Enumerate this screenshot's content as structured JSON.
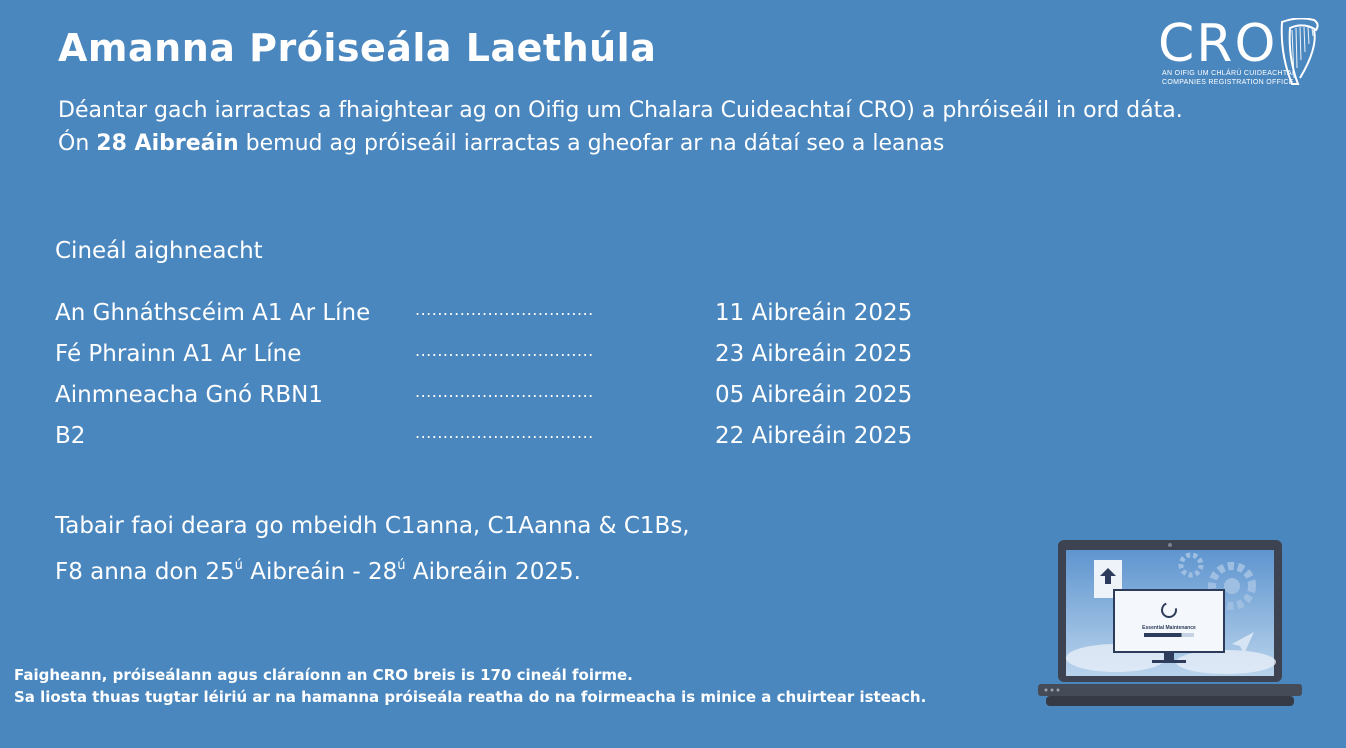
{
  "title": "Amanna Próiseála Laethúla",
  "intro": {
    "part1": "Déantar gach iarractas a fhaightear ag on Oifig um Chalara Cuideachtaí CRO) a phróiseáil in ord dáta. Ón ",
    "bold": "28 Aibreáin",
    "part2": " bemud ag próiseáil iarractas a gheofar ar na dátaí seo a leanas"
  },
  "section_label": "Cineál aighneacht",
  "rows": [
    {
      "name": "An Ghnáthscéim A1 Ar Líne",
      "dots": "................................",
      "date": "11 Aibreáin 2025"
    },
    {
      "name": "Fé Phrainn A1 Ar Líne",
      "dots": "................................",
      "date": "23 Aibreáin 2025"
    },
    {
      "name": "Ainmneacha Gnó RBN1",
      "dots": "................................",
      "date": "05 Aibreáin 2025"
    },
    {
      "name": "B2",
      "dots": "................................",
      "date": "22 Aibreáin 2025"
    }
  ],
  "note": {
    "line1": "Tabair faoi deara go mbeidh C1anna, C1Aanna & C1Bs,",
    "line2_a": "F8 anna don 25",
    "line2_sup1": "ú",
    "line2_b": " Aibreáin - 28",
    "line2_sup2": "ú",
    "line2_c": " Aibreáin 2025."
  },
  "footer": {
    "line1": "Faigheann, próiseálann agus cláraíonn an CRO breis is 170 cineál foirme.",
    "line2": "Sa liosta thuas tugtar léiriú ar na hamanna próiseála reatha do na foirmeacha is minice a chuirtear isteach."
  },
  "logo": {
    "text": "CRO",
    "sub1": "AN OIFIG UM CHLÁRÚ CUIDEACHTAÍ",
    "sub2": "COMPANIES REGISTRATION OFFICE"
  },
  "laptop": {
    "screen_label": "Essential Maintenance",
    "progress": 0.75
  },
  "icons": [
    "harp-icon",
    "laptop-illustration",
    "upload-icon",
    "gear-icon",
    "paper-plane-icon",
    "loading-spinner-icon"
  ]
}
